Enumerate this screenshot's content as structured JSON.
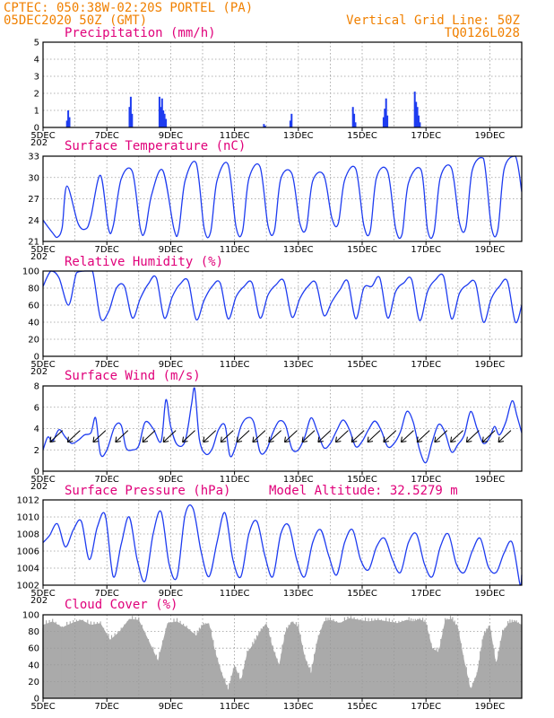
{
  "header": {
    "line1_left": "CPTEC:  050:38W-02:20S  PORTEL (PA)",
    "line2_left": "05DEC2020 50Z (GMT)",
    "line1_right": "Vertical Grid Line: 50Z",
    "line2_right": "TQ0126L028"
  },
  "colors": {
    "header": "#f08000",
    "panel_title": "#e0007a",
    "series": "#1e3cf0",
    "cloud": "#aaaaaa",
    "grid": "#999999"
  },
  "x_axis": {
    "start": "05DEC2020 00Z",
    "end": "20DEC2020 00Z",
    "tick_labels": [
      "5DEC",
      "7DEC",
      "9DEC",
      "11DEC",
      "13DEC",
      "15DEC",
      "17DEC",
      "19DEC"
    ],
    "tick_days": [
      5,
      7,
      9,
      11,
      13,
      15,
      17,
      19
    ],
    "vertical_grid_days": [
      6,
      7,
      8,
      9,
      10,
      11,
      12,
      13,
      14,
      15,
      16,
      17,
      18,
      19
    ],
    "cut_label": "202"
  },
  "chart_data": [
    {
      "id": "precip",
      "type": "bar",
      "title": "Precipitation (mm/h)",
      "ylim": [
        0,
        5
      ],
      "yticks": [
        "0",
        "1",
        "2",
        "3",
        "4",
        "5"
      ],
      "ytick_values": [
        0,
        1,
        2,
        3,
        4,
        5
      ],
      "grid": true,
      "x_day": [
        5.75,
        5.79,
        5.83,
        7.71,
        7.75,
        7.79,
        8.65,
        8.69,
        8.73,
        8.77,
        8.81,
        8.85,
        11.92,
        11.96,
        12.75,
        12.79,
        14.71,
        14.75,
        14.79,
        15.67,
        15.71,
        15.75,
        15.79,
        16.65,
        16.69,
        16.73,
        16.77,
        16.81
      ],
      "values": [
        0.4,
        1.0,
        0.6,
        1.2,
        1.8,
        0.8,
        1.8,
        1.2,
        1.7,
        1.0,
        0.8,
        0.5,
        0.2,
        0.1,
        0.4,
        0.8,
        1.2,
        0.8,
        0.3,
        0.6,
        1.1,
        1.7,
        0.7,
        2.1,
        1.5,
        1.2,
        0.7,
        0.3
      ]
    },
    {
      "id": "temp",
      "type": "line",
      "title": "Surface Temperature (nC)",
      "ylim": [
        21,
        33
      ],
      "yticks": [
        "21",
        "24",
        "27",
        "30",
        "33"
      ],
      "ytick_values": [
        21,
        24,
        27,
        30,
        33
      ],
      "grid": true,
      "x_day": [
        5.0,
        5.3,
        5.45,
        5.6,
        5.75,
        6.1,
        6.35,
        6.5,
        6.8,
        7.05,
        7.2,
        7.45,
        7.8,
        8.05,
        8.2,
        8.4,
        8.75,
        9.1,
        9.25,
        9.45,
        9.8,
        10.05,
        10.25,
        10.45,
        10.8,
        11.05,
        11.25,
        11.45,
        11.8,
        12.05,
        12.25,
        12.45,
        12.8,
        13.05,
        13.25,
        13.45,
        13.8,
        14.05,
        14.25,
        14.45,
        14.8,
        15.05,
        15.25,
        15.45,
        15.8,
        16.05,
        16.25,
        16.45,
        16.85,
        17.05,
        17.25,
        17.45,
        17.8,
        18.05,
        18.25,
        18.45,
        18.8,
        19.05,
        19.25,
        19.45,
        19.8,
        20.0
      ],
      "values": [
        24.0,
        22.2,
        21.6,
        23.0,
        28.8,
        23.5,
        22.8,
        24.5,
        30.3,
        22.8,
        23.2,
        29.8,
        30.8,
        22.8,
        22.5,
        27.5,
        31.0,
        22.8,
        22.5,
        29.5,
        32.0,
        22.8,
        22.3,
        29.5,
        31.8,
        23.0,
        22.4,
        29.8,
        31.5,
        23.2,
        22.5,
        29.8,
        30.5,
        23.5,
        22.9,
        29.5,
        30.3,
        24.3,
        23.5,
        29.6,
        31.2,
        23.3,
        22.4,
        30.0,
        30.8,
        22.8,
        22.0,
        29.2,
        31.0,
        22.6,
        22.3,
        30.0,
        31.3,
        23.6,
        23.0,
        31.0,
        32.7,
        23.0,
        22.6,
        31.2,
        33.0,
        28.0
      ]
    },
    {
      "id": "rh",
      "type": "line",
      "title": "Relative Humidity (%)",
      "ylim": [
        0,
        100
      ],
      "yticks": [
        "0",
        "20",
        "40",
        "60",
        "80",
        "100"
      ],
      "ytick_values": [
        0,
        20,
        40,
        60,
        80,
        100
      ],
      "grid": true,
      "x_day": [
        5.0,
        5.25,
        5.5,
        5.8,
        6.05,
        6.3,
        6.55,
        6.8,
        7.05,
        7.3,
        7.55,
        7.8,
        8.05,
        8.3,
        8.55,
        8.8,
        9.05,
        9.3,
        9.55,
        9.8,
        10.05,
        10.3,
        10.55,
        10.8,
        11.05,
        11.3,
        11.55,
        11.8,
        12.05,
        12.3,
        12.55,
        12.8,
        13.05,
        13.3,
        13.55,
        13.8,
        14.05,
        14.3,
        14.55,
        14.8,
        15.05,
        15.3,
        15.55,
        15.8,
        16.05,
        16.3,
        16.55,
        16.8,
        17.05,
        17.3,
        17.55,
        17.8,
        18.05,
        18.3,
        18.55,
        18.8,
        19.05,
        19.3,
        19.55,
        19.8,
        20.0
      ],
      "values": [
        82,
        100,
        92,
        60,
        98,
        100,
        100,
        45,
        52,
        80,
        82,
        45,
        68,
        85,
        92,
        45,
        70,
        85,
        88,
        43,
        66,
        82,
        86,
        44,
        70,
        82,
        86,
        45,
        72,
        84,
        88,
        46,
        68,
        82,
        86,
        48,
        64,
        78,
        88,
        44,
        80,
        82,
        92,
        45,
        76,
        86,
        90,
        42,
        76,
        90,
        94,
        44,
        74,
        84,
        86,
        40,
        68,
        82,
        88,
        40,
        60
      ]
    },
    {
      "id": "wind",
      "type": "line",
      "title": "Surface Wind (m/s)",
      "ylim": [
        0,
        8
      ],
      "yticks": [
        "0",
        "2",
        "4",
        "6",
        "8"
      ],
      "ytick_values": [
        0,
        2,
        4,
        6,
        8
      ],
      "grid": true,
      "x_day": [
        5.0,
        5.15,
        5.3,
        5.5,
        5.7,
        5.9,
        6.1,
        6.3,
        6.5,
        6.65,
        6.8,
        7.0,
        7.25,
        7.45,
        7.6,
        7.8,
        8.0,
        8.2,
        8.45,
        8.7,
        8.85,
        9.0,
        9.2,
        9.45,
        9.65,
        9.75,
        9.9,
        10.1,
        10.3,
        10.5,
        10.7,
        10.85,
        11.0,
        11.2,
        11.4,
        11.6,
        11.8,
        12.0,
        12.2,
        12.4,
        12.6,
        12.8,
        13.0,
        13.2,
        13.4,
        13.6,
        13.8,
        14.0,
        14.2,
        14.4,
        14.6,
        14.8,
        15.0,
        15.2,
        15.4,
        15.6,
        15.8,
        16.0,
        16.2,
        16.4,
        16.6,
        16.8,
        17.0,
        17.2,
        17.4,
        17.6,
        17.8,
        18.0,
        18.2,
        18.4,
        18.6,
        18.8,
        19.0,
        19.15,
        19.3,
        19.5,
        19.7,
        19.85,
        20.0
      ],
      "values": [
        2.0,
        3.2,
        2.8,
        3.9,
        3.2,
        2.6,
        2.9,
        3.4,
        3.6,
        5.0,
        1.6,
        2.0,
        4.2,
        4.3,
        2.2,
        2.0,
        2.4,
        4.6,
        4.0,
        2.8,
        6.7,
        4.2,
        2.5,
        2.8,
        6.2,
        7.8,
        3.0,
        1.6,
        2.1,
        3.9,
        4.3,
        1.5,
        2.0,
        4.2,
        5.0,
        4.6,
        1.8,
        2.0,
        3.6,
        4.7,
        4.3,
        2.1,
        2.0,
        3.2,
        5.0,
        3.7,
        2.2,
        2.6,
        3.8,
        4.8,
        3.9,
        2.3,
        2.8,
        3.9,
        4.7,
        3.8,
        2.3,
        2.6,
        3.7,
        5.6,
        4.6,
        2.0,
        0.8,
        2.8,
        4.4,
        3.6,
        1.8,
        2.5,
        3.4,
        5.6,
        4.0,
        2.6,
        3.2,
        4.2,
        3.4,
        4.6,
        6.6,
        5.2,
        3.6
      ]
    },
    {
      "id": "pressure",
      "type": "line",
      "title": "Surface Pressure (hPa)",
      "annotation": "Model Altitude: 32.5279 m",
      "ylim": [
        1002,
        1012
      ],
      "yticks": [
        "1002",
        "1004",
        "1006",
        "1008",
        "1010",
        "1012"
      ],
      "ytick_values": [
        1002,
        1004,
        1006,
        1008,
        1010,
        1012
      ],
      "grid": true,
      "x_day": [
        5.0,
        5.2,
        5.45,
        5.7,
        5.95,
        6.2,
        6.45,
        6.7,
        6.95,
        7.2,
        7.45,
        7.7,
        7.95,
        8.2,
        8.45,
        8.7,
        8.95,
        9.2,
        9.45,
        9.7,
        9.95,
        10.2,
        10.45,
        10.7,
        10.95,
        11.2,
        11.45,
        11.7,
        11.95,
        12.2,
        12.45,
        12.7,
        12.95,
        13.2,
        13.45,
        13.7,
        13.95,
        14.2,
        14.45,
        14.7,
        14.95,
        15.2,
        15.45,
        15.7,
        15.95,
        16.2,
        16.45,
        16.7,
        16.95,
        17.2,
        17.45,
        17.7,
        17.95,
        18.2,
        18.45,
        18.7,
        18.95,
        19.2,
        19.45,
        19.7,
        19.95,
        20.0
      ],
      "values": [
        1007.0,
        1007.8,
        1009.2,
        1006.5,
        1008.5,
        1009.5,
        1005.0,
        1008.8,
        1010.2,
        1003.0,
        1006.8,
        1010.0,
        1005.0,
        1002.5,
        1008.0,
        1010.6,
        1004.5,
        1003.0,
        1010.2,
        1011.0,
        1006.0,
        1003.0,
        1007.0,
        1010.5,
        1005.0,
        1003.0,
        1008.0,
        1009.5,
        1005.5,
        1003.0,
        1008.0,
        1009.0,
        1005.0,
        1003.0,
        1007.0,
        1008.5,
        1005.5,
        1003.2,
        1007.0,
        1008.5,
        1005.0,
        1003.8,
        1006.5,
        1007.5,
        1005.0,
        1003.5,
        1007.0,
        1008.0,
        1004.5,
        1003.0,
        1006.5,
        1008.0,
        1004.5,
        1003.5,
        1006.0,
        1007.5,
        1004.2,
        1003.5,
        1005.8,
        1007.0,
        1002.0,
        1003.2
      ]
    },
    {
      "id": "cloud",
      "type": "area",
      "title": "Cloud Cover (%)",
      "ylim": [
        0,
        100
      ],
      "yticks": [
        "0",
        "20",
        "40",
        "60",
        "80",
        "100"
      ],
      "ytick_values": [
        0,
        20,
        40,
        60,
        80,
        100
      ],
      "grid": true,
      "x_day": [
        5.0,
        5.3,
        5.6,
        5.9,
        6.2,
        6.5,
        6.8,
        7.1,
        7.4,
        7.7,
        8.0,
        8.3,
        8.6,
        8.9,
        9.2,
        9.5,
        9.8,
        10.0,
        10.2,
        10.4,
        10.6,
        10.8,
        11.0,
        11.2,
        11.4,
        11.6,
        11.8,
        12.0,
        12.2,
        12.4,
        12.6,
        12.8,
        13.0,
        13.2,
        13.4,
        13.6,
        13.8,
        14.0,
        14.3,
        14.6,
        14.9,
        15.2,
        15.5,
        15.8,
        16.1,
        16.4,
        16.6,
        16.8,
        17.0,
        17.2,
        17.4,
        17.6,
        17.8,
        18.0,
        18.2,
        18.4,
        18.6,
        18.8,
        19.0,
        19.2,
        19.4,
        19.6,
        19.8,
        20.0
      ],
      "values": [
        88,
        92,
        85,
        90,
        94,
        88,
        90,
        70,
        80,
        95,
        94,
        70,
        45,
        90,
        92,
        85,
        75,
        88,
        90,
        55,
        30,
        10,
        40,
        20,
        55,
        65,
        80,
        90,
        60,
        40,
        80,
        92,
        85,
        50,
        30,
        70,
        92,
        94,
        90,
        96,
        94,
        92,
        94,
        92,
        90,
        94,
        92,
        95,
        90,
        60,
        55,
        94,
        95,
        85,
        45,
        10,
        30,
        75,
        88,
        40,
        80,
        90,
        92,
        88
      ]
    }
  ],
  "titles": {
    "precip": "Precipitation (mm/h)",
    "temp": "Surface Temperature (nC)",
    "rh": "Relative Humidity (%)",
    "wind": "Surface Wind (m/s)",
    "pressure": "Surface Pressure (hPa)",
    "pressure_note": "Model Altitude: 32.5279 m",
    "cloud": "Cloud Cover (%)"
  },
  "wind_barbs": {
    "note": "Wind direction arrows (pointing toward south-west), drawn at mid-panel",
    "x_day": [
      5.5,
      6.05,
      6.85,
      7.55,
      8.4,
      9.05,
      9.65,
      10.3,
      10.85,
      11.35,
      11.85,
      12.35,
      12.85,
      13.4,
      13.9,
      14.45,
      14.95,
      15.45,
      15.95,
      16.5,
      17.0,
      17.55,
      18.05,
      18.55,
      19.05,
      19.55
    ]
  }
}
